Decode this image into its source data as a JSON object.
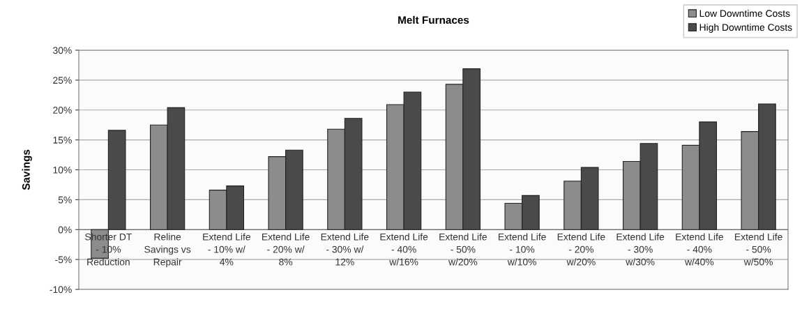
{
  "chart_data": {
    "type": "bar",
    "title": "Melt Furnaces",
    "ylabel": "Savings",
    "categories": [
      "Shorter DT\n- 10%\nReduction",
      "Reline\nSavings vs\nRepair",
      "Extend Life\n- 10% w/\n4%",
      "Extend Life\n- 20% w/\n8%",
      "Extend Life\n- 30% w/\n12%",
      "Extend Life\n- 40%\nw/16%",
      "Extend Life\n- 50%\nw/20%",
      "Extend Life\n- 10%\nw/10%",
      "Extend Life\n- 20%\nw/20%",
      "Extend Life\n- 30%\nw/30%",
      "Extend Life\n- 40%\nw/40%",
      "Extend Life\n- 50%\nw/50%"
    ],
    "series": [
      {
        "name": "Low Downtime Costs",
        "color": "#8c8c8c",
        "values": [
          -4.8,
          17.5,
          6.6,
          12.2,
          16.8,
          20.9,
          24.3,
          4.4,
          8.1,
          11.4,
          14.1,
          16.4
        ]
      },
      {
        "name": "High Downtime Costs",
        "color": "#4a4a4a",
        "values": [
          16.6,
          20.4,
          7.3,
          13.3,
          18.6,
          23.0,
          26.9,
          5.7,
          10.4,
          14.4,
          18.0,
          21.0
        ]
      }
    ],
    "ylim": [
      -10,
      30
    ],
    "yticks": [
      {
        "value": -10,
        "label": "-10%"
      },
      {
        "value": -5,
        "label": "-5%"
      },
      {
        "value": 0,
        "label": "0%"
      },
      {
        "value": 5,
        "label": "5%"
      },
      {
        "value": 10,
        "label": "10%"
      },
      {
        "value": 15,
        "label": "15%"
      },
      {
        "value": 20,
        "label": "20%"
      },
      {
        "value": 25,
        "label": "25%"
      },
      {
        "value": 30,
        "label": "30%"
      }
    ],
    "grid": "y",
    "legend": "top right"
  }
}
